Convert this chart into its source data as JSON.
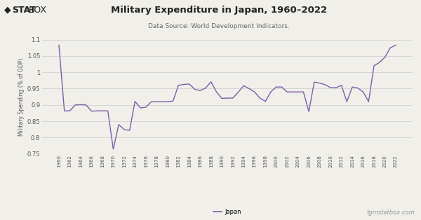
{
  "title": "Military Expenditure in Japan, 1960–2022",
  "subtitle": "Data Source: World Development Indicators.",
  "ylabel": "Military Spending (% of GDP)",
  "legend_label": "Japan",
  "line_color": "#7b5ea7",
  "background_color": "#f0efea",
  "plot_bg_color": "#f0efea",
  "ylim": [
    0.75,
    1.1
  ],
  "yticks": [
    0.75,
    0.8,
    0.85,
    0.9,
    0.95,
    1.0,
    1.05,
    1.1
  ],
  "watermark": "tgmstatbox.com",
  "years": [
    1960,
    1961,
    1962,
    1963,
    1964,
    1965,
    1966,
    1967,
    1968,
    1969,
    1970,
    1971,
    1972,
    1973,
    1974,
    1975,
    1976,
    1977,
    1978,
    1979,
    1980,
    1981,
    1982,
    1983,
    1984,
    1985,
    1986,
    1987,
    1988,
    1989,
    1990,
    1991,
    1992,
    1993,
    1994,
    1995,
    1996,
    1997,
    1998,
    1999,
    2000,
    2001,
    2002,
    2003,
    2004,
    2005,
    2006,
    2007,
    2008,
    2009,
    2010,
    2011,
    2012,
    2013,
    2014,
    2015,
    2016,
    2017,
    2018,
    2019,
    2020,
    2021,
    2022
  ],
  "values": [
    1.083,
    0.882,
    0.882,
    0.9,
    0.901,
    0.9,
    0.881,
    0.882,
    0.882,
    0.882,
    0.765,
    0.84,
    0.825,
    0.822,
    0.911,
    0.891,
    0.893,
    0.91,
    0.91,
    0.91,
    0.91,
    0.912,
    0.96,
    0.963,
    0.964,
    0.948,
    0.944,
    0.952,
    0.971,
    0.94,
    0.92,
    0.921,
    0.921,
    0.939,
    0.959,
    0.95,
    0.94,
    0.921,
    0.911,
    0.94,
    0.955,
    0.955,
    0.94,
    0.94,
    0.94,
    0.94,
    0.88,
    0.97,
    0.967,
    0.962,
    0.953,
    0.953,
    0.96,
    0.91,
    0.955,
    0.952,
    0.94,
    0.91,
    1.02,
    1.03,
    1.046,
    1.075,
    1.083
  ]
}
